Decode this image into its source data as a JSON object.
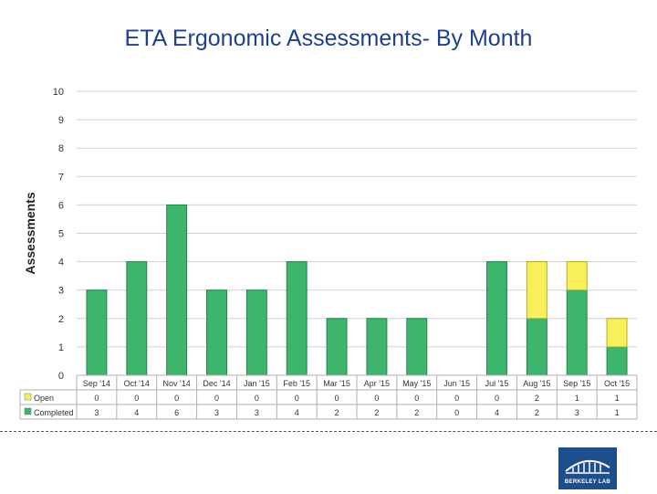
{
  "page": {
    "title": "ETA Ergonomic Assessments- By Month"
  },
  "logo": {
    "text": "BERKELEY LAB"
  },
  "chart_data": {
    "type": "bar",
    "stacked": true,
    "title": "ETA Ergonomic Assessments- By Month",
    "ylabel": "Assessments",
    "xlabel": "",
    "ylim": [
      0,
      10
    ],
    "yticks": [
      0,
      1,
      2,
      3,
      4,
      5,
      6,
      7,
      8,
      9,
      10
    ],
    "grid": true,
    "categories": [
      "Sep '14",
      "Oct '14",
      "Nov '14",
      "Dec '14",
      "Jan '15",
      "Feb '15",
      "Mar '15",
      "Apr '15",
      "May '15",
      "Jun '15",
      "Jul '15",
      "Aug '15",
      "Sep '15",
      "Oct '15"
    ],
    "series": [
      {
        "name": "Completed",
        "color": "#3db56d",
        "values": [
          3,
          4,
          6,
          3,
          3,
          4,
          2,
          2,
          2,
          0,
          4,
          2,
          3,
          1
        ]
      },
      {
        "name": "Open",
        "color": "#f7f05a",
        "values": [
          0,
          0,
          0,
          0,
          0,
          0,
          0,
          0,
          0,
          0,
          0,
          2,
          1,
          1
        ]
      }
    ],
    "data_table": true,
    "table_rows_order": [
      "Open",
      "Completed"
    ]
  }
}
